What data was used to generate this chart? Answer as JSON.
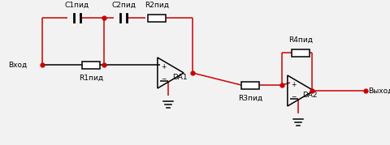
{
  "bg_color": "#f2f2f2",
  "line_color": "black",
  "red_color": "#cc0000",
  "wire_lw": 1.1,
  "comp_lw": 1.1,
  "labels": {
    "input": "Вход",
    "output": "Выход",
    "C1": "С1пид",
    "C2": "С2пид",
    "R1": "R1пид",
    "R2": "R2пид",
    "R3": "R3пид",
    "R4": "R4пид",
    "DA1": "DA1",
    "DA2": "DA2"
  },
  "font_size": 6.5
}
